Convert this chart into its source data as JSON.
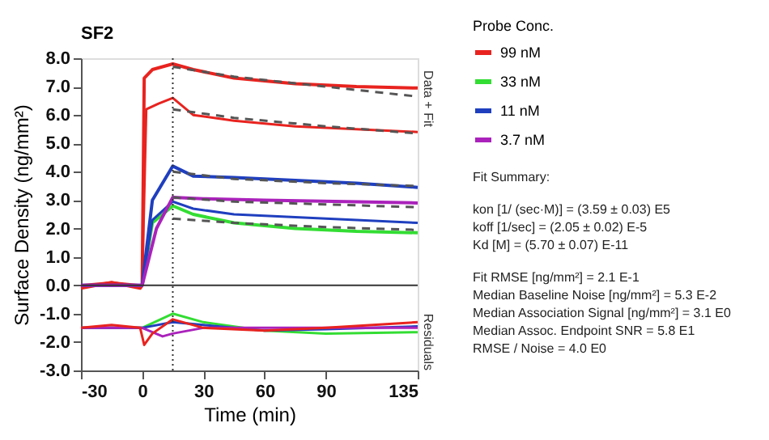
{
  "chart_data": {
    "type": "line",
    "title": "SF2",
    "xlabel": "Time (min)",
    "ylabel": "Surface Density (ng/mm²)",
    "legend_title": "Probe Conc.",
    "xlim": [
      -30,
      135
    ],
    "xticks": [
      -30,
      0,
      30,
      60,
      90,
      135
    ],
    "ylim": [
      -3,
      8
    ],
    "yticks": [
      {
        "value": -3,
        "label": "-3.0"
      },
      {
        "value": -2,
        "label": "-2.0"
      },
      {
        "value": -1,
        "label": "-1.0"
      },
      {
        "value": 0,
        "label": "0.0"
      },
      {
        "value": 1,
        "label": "1.0"
      },
      {
        "value": 2,
        "label": "2.0"
      },
      {
        "value": 3,
        "label": "3.0"
      },
      {
        "value": 4,
        "label": "4.0"
      },
      {
        "value": 5,
        "label": "5.0"
      },
      {
        "value": 6,
        "label": "6.0"
      },
      {
        "value": 7,
        "label": "7.0"
      },
      {
        "value": 8,
        "label": "8.0"
      }
    ],
    "grid": false,
    "legend": "right",
    "marker": "none",
    "series": [
      {
        "name": "99 nM",
        "color": "#e8231f",
        "x": [
          -30,
          -15,
          -1,
          0,
          1,
          5,
          15,
          25,
          45,
          75,
          105,
          135
        ],
        "values": [
          -0.1,
          0.1,
          -0.1,
          0,
          7.3,
          7.6,
          7.8,
          7.6,
          7.3,
          7.1,
          7.0,
          6.95
        ]
      },
      {
        "color": "#e8231f",
        "x": [
          -30,
          -15,
          -1,
          0,
          2,
          8,
          15,
          25,
          45,
          75,
          105,
          135
        ],
        "values": [
          0,
          0.1,
          0,
          0,
          6.2,
          6.4,
          6.6,
          6.0,
          5.8,
          5.6,
          5.5,
          5.4
        ]
      },
      {
        "name": "33 nM",
        "color": "#33dd33",
        "x": [
          0,
          5,
          15,
          25,
          45,
          75,
          105,
          135
        ],
        "values": [
          0,
          2.2,
          2.8,
          2.5,
          2.2,
          2.0,
          1.9,
          1.85
        ]
      },
      {
        "name": "11 nM",
        "color": "#1f3fbf",
        "x": [
          -30,
          -1,
          0,
          5,
          15,
          25,
          45,
          75,
          105,
          135
        ],
        "values": [
          0,
          0,
          0,
          3.0,
          4.2,
          3.85,
          3.8,
          3.7,
          3.6,
          3.45
        ]
      },
      {
        "color": "#1f3fbf",
        "x": [
          -30,
          -1,
          0,
          5,
          15,
          25,
          45,
          75,
          105,
          135
        ],
        "values": [
          0,
          0,
          0,
          2.3,
          2.95,
          2.7,
          2.5,
          2.4,
          2.3,
          2.2
        ]
      },
      {
        "name": "3.7 nM",
        "color": "#aa22bb",
        "x": [
          -30,
          -1,
          0,
          7,
          15,
          30,
          60,
          100,
          135
        ],
        "values": [
          0,
          0,
          0,
          2.0,
          3.1,
          3.05,
          3.0,
          2.95,
          2.9
        ]
      },
      {
        "color": "#555555",
        "line_style": "dashed",
        "x": [
          15,
          45,
          90,
          135
        ],
        "values": [
          7.7,
          7.35,
          7.0,
          6.65
        ]
      },
      {
        "color": "#555555",
        "line_style": "dashed",
        "x": [
          15,
          45,
          90,
          135
        ],
        "values": [
          6.2,
          5.9,
          5.6,
          5.35
        ]
      },
      {
        "color": "#555555",
        "line_style": "dashed",
        "x": [
          15,
          45,
          90,
          135
        ],
        "values": [
          4.0,
          3.75,
          3.6,
          3.5
        ]
      },
      {
        "color": "#555555",
        "line_style": "dashed",
        "x": [
          15,
          45,
          90,
          135
        ],
        "values": [
          3.1,
          2.95,
          2.85,
          2.75
        ]
      },
      {
        "color": "#555555",
        "line_style": "dashed",
        "x": [
          15,
          45,
          90,
          135
        ],
        "values": [
          2.35,
          2.2,
          2.05,
          1.95
        ]
      },
      {
        "color": "#33dd33",
        "x": [
          -30,
          0,
          15,
          30,
          60,
          90,
          135
        ],
        "values": [
          -1.5,
          -1.5,
          -1.0,
          -1.3,
          -1.6,
          -1.7,
          -1.65
        ]
      },
      {
        "color": "#1f3fbf",
        "x": [
          -30,
          0,
          15,
          30,
          60,
          90,
          135
        ],
        "values": [
          -1.5,
          -1.5,
          -1.3,
          -1.4,
          -1.6,
          -1.55,
          -1.45
        ]
      },
      {
        "color": "#aa22bb",
        "x": [
          -30,
          0,
          10,
          15,
          30,
          135
        ],
        "values": [
          -1.5,
          -1.5,
          -1.8,
          -1.7,
          -1.5,
          -1.5
        ]
      },
      {
        "color": "#e8231f",
        "x": [
          -30,
          -15,
          -1,
          1,
          5,
          15,
          30,
          60,
          90,
          135
        ],
        "values": [
          -1.5,
          -1.4,
          -1.5,
          -2.1,
          -1.7,
          -1.2,
          -1.5,
          -1.6,
          -1.5,
          -1.3
        ]
      }
    ],
    "ref_lines": [
      {
        "axis": "y",
        "value": 0,
        "color": "#333333"
      },
      {
        "axis": "x",
        "value": 15,
        "color": "#333333",
        "line_style": "dotted"
      }
    ],
    "annotations": [
      "Data + Fit",
      "Residuals",
      "Fit Summary:",
      "kon  [1/ (sec·M)]  =   (3.59 ± 0.03) E5",
      "koff  [1/sec]  =   (2.05 ± 0.02) E-5",
      "Kd  [M]  =   (5.70 ± 0.07) E-11",
      "Fit RMSE [ng/mm²]  =   2.1 E-1",
      "Median Baseline Noise [ng/mm²]  =   5.3 E-2",
      "Median Association Signal [ng/mm²]  =   3.1 E0",
      "Median Assoc. Endpoint SNR  =   5.8 E1",
      "RMSE / Noise  =   4.0 E0"
    ]
  }
}
